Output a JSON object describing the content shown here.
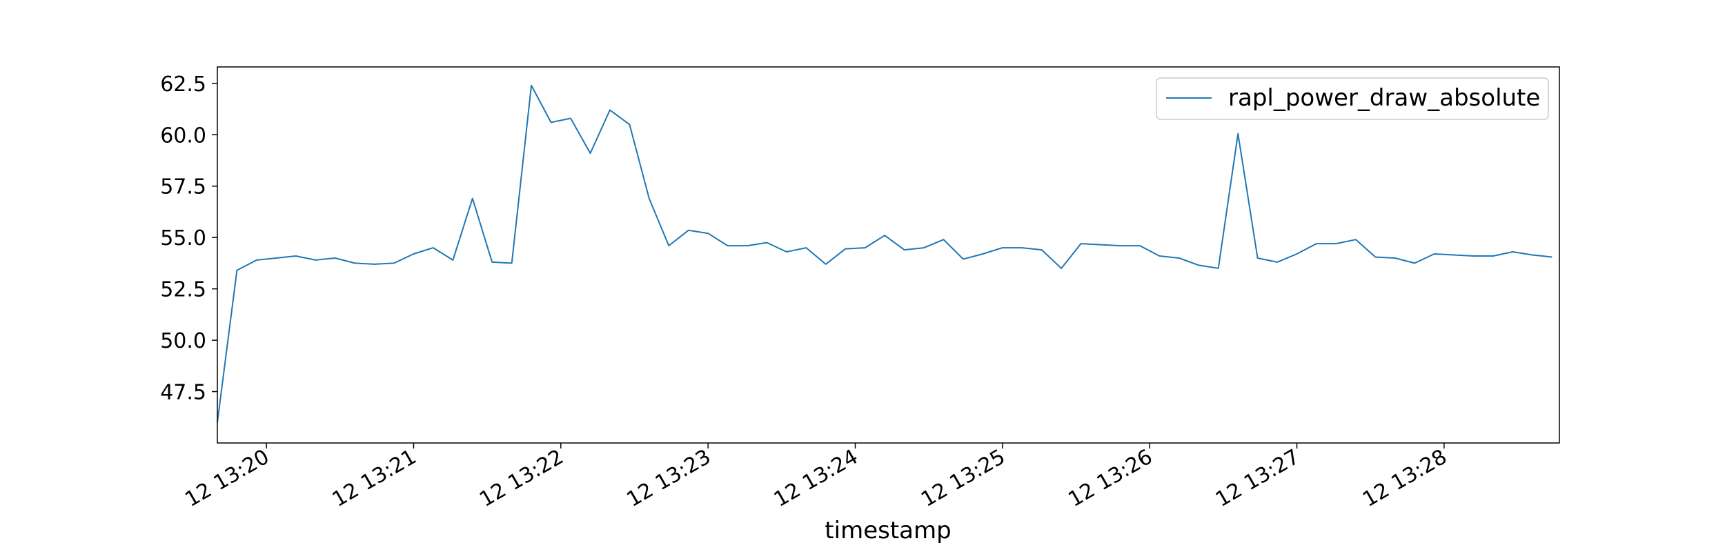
{
  "chart_data": {
    "type": "line",
    "title": "",
    "xlabel": "timestamp",
    "ylabel": "",
    "x_start": "12 13:19:40",
    "x_end": "12 13:28:47",
    "xlim": [
      "12 13:19:40",
      "12 13:28:47"
    ],
    "ylim": [
      45.0,
      63.3
    ],
    "x_ticks": [
      "12 13:20",
      "12 13:21",
      "12 13:22",
      "12 13:23",
      "12 13:24",
      "12 13:25",
      "12 13:26",
      "12 13:27",
      "12 13:28"
    ],
    "y_ticks": [
      "47.5",
      "50.0",
      "52.5",
      "55.0",
      "57.5",
      "60.0",
      "62.5"
    ],
    "grid": false,
    "legend": {
      "position": "top-right"
    },
    "series": [
      {
        "name": "rapl_power_draw_absolute",
        "color": "#1f77b4",
        "x": [
          "12 13:19:40",
          "12 13:19:48",
          "12 13:19:56",
          "12 13:20:04",
          "12 13:20:12",
          "12 13:20:20",
          "12 13:20:28",
          "12 13:20:36",
          "12 13:20:44",
          "12 13:20:52",
          "12 13:21:00",
          "12 13:21:08",
          "12 13:21:16",
          "12 13:21:24",
          "12 13:21:32",
          "12 13:21:40",
          "12 13:21:48",
          "12 13:21:56",
          "12 13:22:04",
          "12 13:22:12",
          "12 13:22:20",
          "12 13:22:28",
          "12 13:22:36",
          "12 13:22:44",
          "12 13:22:52",
          "12 13:23:00",
          "12 13:23:08",
          "12 13:23:16",
          "12 13:23:24",
          "12 13:23:32",
          "12 13:23:40",
          "12 13:23:48",
          "12 13:23:56",
          "12 13:24:04",
          "12 13:24:12",
          "12 13:24:20",
          "12 13:24:28",
          "12 13:24:36",
          "12 13:24:44",
          "12 13:24:52",
          "12 13:25:00",
          "12 13:25:08",
          "12 13:25:16",
          "12 13:25:24",
          "12 13:25:32",
          "12 13:25:40",
          "12 13:25:48",
          "12 13:25:56",
          "12 13:26:04",
          "12 13:26:12",
          "12 13:26:20",
          "12 13:26:28",
          "12 13:26:36",
          "12 13:26:44",
          "12 13:26:52",
          "12 13:27:00",
          "12 13:27:08",
          "12 13:27:16",
          "12 13:27:24",
          "12 13:27:32",
          "12 13:27:40",
          "12 13:27:48",
          "12 13:27:56",
          "12 13:28:04",
          "12 13:28:12",
          "12 13:28:20",
          "12 13:28:28",
          "12 13:28:36",
          "12 13:28:44"
        ],
        "values": [
          46.0,
          53.4,
          53.9,
          54.0,
          54.1,
          53.9,
          54.0,
          53.75,
          53.7,
          53.75,
          54.2,
          54.5,
          53.9,
          56.9,
          53.8,
          53.75,
          62.4,
          60.6,
          60.8,
          59.1,
          61.2,
          60.5,
          56.9,
          54.6,
          55.35,
          55.2,
          54.6,
          54.6,
          54.75,
          54.3,
          54.5,
          53.7,
          54.45,
          54.5,
          55.1,
          54.4,
          54.5,
          54.9,
          53.95,
          54.2,
          54.5,
          54.5,
          54.4,
          53.5,
          54.7,
          54.65,
          54.6,
          54.6,
          54.1,
          54.0,
          53.65,
          53.5,
          60.05,
          54.0,
          53.8,
          54.2,
          54.7,
          54.7,
          54.9,
          54.05,
          54.0,
          53.75,
          54.2,
          54.15,
          54.1,
          54.1,
          54.3,
          54.15,
          54.05
        ]
      }
    ]
  }
}
